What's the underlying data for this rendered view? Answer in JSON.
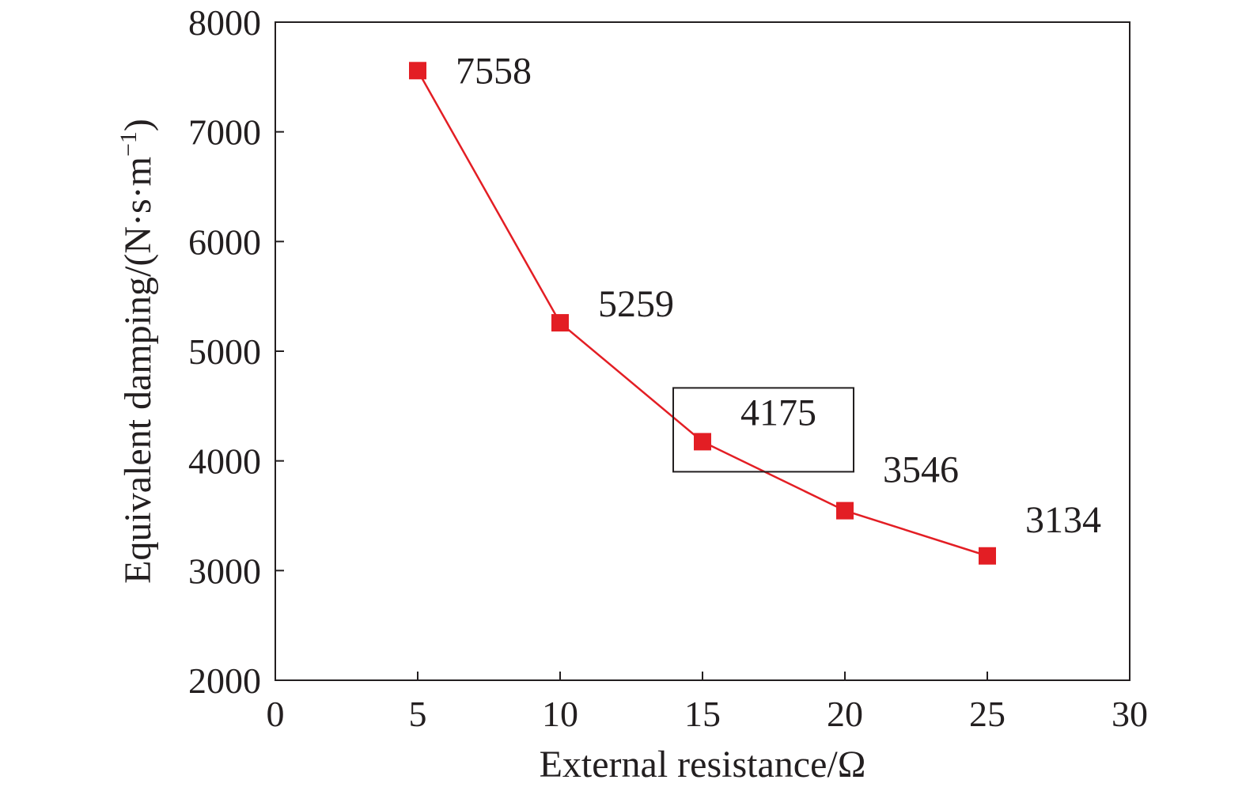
{
  "chart_data": {
    "type": "line",
    "xlabel": "External resistance/Ω",
    "ylabel": "Equivalent damping/(N·s·m",
    "ylabel_superscript": "−1",
    "ylabel_close": ")",
    "xlim": [
      0,
      30
    ],
    "ylim": [
      2000,
      8000
    ],
    "xticks": [
      0,
      5,
      10,
      15,
      20,
      25,
      30
    ],
    "yticks": [
      2000,
      3000,
      4000,
      5000,
      6000,
      7000,
      8000
    ],
    "grid": false,
    "legend": "none",
    "series": [
      {
        "color": "#e31e24",
        "marker": "square",
        "x": [
          5,
          10,
          15,
          20,
          25
        ],
        "values": [
          7558,
          5259,
          4175,
          3546,
          3134
        ],
        "data_labels": [
          "7558",
          "5259",
          "4175",
          "3546",
          "3134"
        ]
      }
    ],
    "annotations": [
      {
        "type": "box",
        "target_x": 15,
        "target_value": 4175,
        "color": "#231f20"
      }
    ]
  }
}
